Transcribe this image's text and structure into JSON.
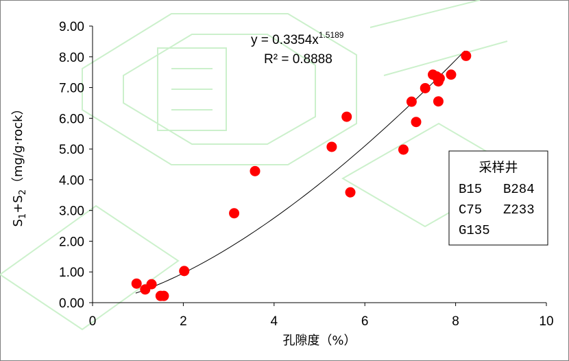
{
  "chart_data": {
    "type": "scatter",
    "title": "",
    "xlabel": "孔隙度（%）",
    "ylabel": "S1+S2（mg/g·rock）",
    "ylabel_parts": {
      "s": "S",
      "sub1": "1",
      "plus": "+S",
      "sub2": "2",
      "unit": "（mg/g·rock）"
    },
    "xlim": [
      0,
      10
    ],
    "ylim": [
      0,
      9
    ],
    "x_ticks": [
      "0",
      "2",
      "4",
      "6",
      "8",
      "10"
    ],
    "y_ticks": [
      "0.00",
      "1.00",
      "2.00",
      "3.00",
      "4.00",
      "5.00",
      "6.00",
      "7.00",
      "8.00",
      "9.00"
    ],
    "grid": false,
    "marker_color": "#ff0000",
    "trend_color": "#000000",
    "points": [
      {
        "x": 0.97,
        "y": 0.62
      },
      {
        "x": 1.16,
        "y": 0.43
      },
      {
        "x": 1.3,
        "y": 0.6
      },
      {
        "x": 1.5,
        "y": 0.22
      },
      {
        "x": 1.57,
        "y": 0.22
      },
      {
        "x": 2.02,
        "y": 1.03
      },
      {
        "x": 3.12,
        "y": 2.91
      },
      {
        "x": 3.58,
        "y": 4.28
      },
      {
        "x": 5.27,
        "y": 5.07
      },
      {
        "x": 5.6,
        "y": 6.05
      },
      {
        "x": 5.68,
        "y": 3.59
      },
      {
        "x": 6.85,
        "y": 4.98
      },
      {
        "x": 7.03,
        "y": 6.54
      },
      {
        "x": 7.13,
        "y": 5.88
      },
      {
        "x": 7.33,
        "y": 6.98
      },
      {
        "x": 7.5,
        "y": 7.42
      },
      {
        "x": 7.58,
        "y": 7.36
      },
      {
        "x": 7.62,
        "y": 7.2
      },
      {
        "x": 7.65,
        "y": 7.3
      },
      {
        "x": 7.62,
        "y": 6.55
      },
      {
        "x": 7.9,
        "y": 7.42
      },
      {
        "x": 8.23,
        "y": 8.03
      }
    ],
    "trendline": {
      "type": "power",
      "coefficient": 0.3354,
      "exponent": 1.5189,
      "x_range": [
        0.95,
        8.2
      ],
      "equation_base": "y = 0.3354x",
      "equation_exp": "1.5189",
      "r2_label": "R² = 0.8888"
    },
    "legend": {
      "placement": "right",
      "title": "采样井",
      "rows": [
        [
          "B15",
          "B284"
        ],
        [
          "C75",
          "Z233"
        ],
        [
          "G135",
          ""
        ]
      ]
    }
  }
}
